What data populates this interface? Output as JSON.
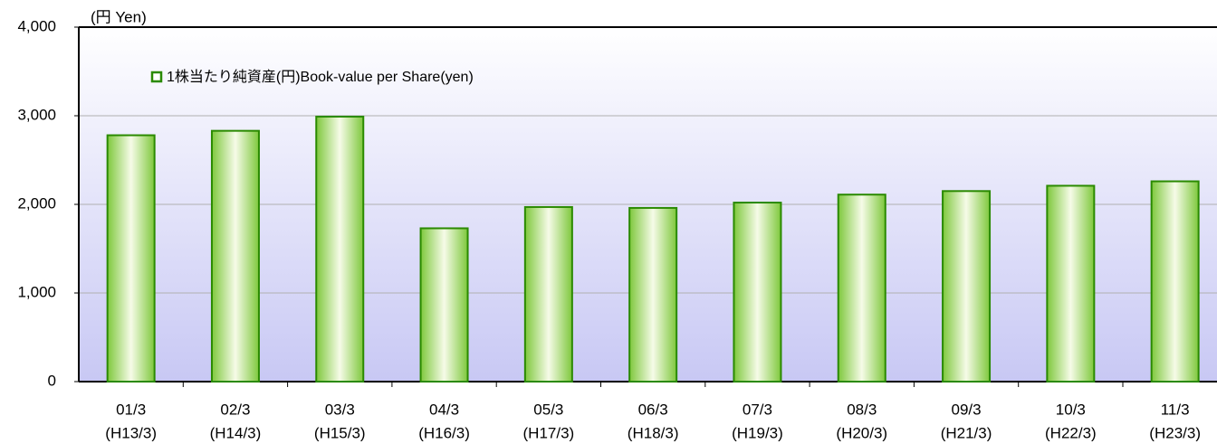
{
  "chart_data": {
    "type": "bar",
    "unit_label": "(円 Yen)",
    "series": [
      {
        "name": "1株当たり純資産(円)Book-value per Share(yen)",
        "color": "#2a8a00",
        "values": [
          2780,
          2830,
          2990,
          1730,
          1970,
          1960,
          2020,
          2110,
          2150,
          2210,
          2260
        ]
      }
    ],
    "categories": [
      [
        "01/3",
        "(H13/3)"
      ],
      [
        "02/3",
        "(H14/3)"
      ],
      [
        "03/3",
        "(H15/3)"
      ],
      [
        "04/3",
        "(H16/3)"
      ],
      [
        "05/3",
        "(H17/3)"
      ],
      [
        "06/3",
        "(H18/3)"
      ],
      [
        "07/3",
        "(H19/3)"
      ],
      [
        "08/3",
        "(H20/3)"
      ],
      [
        "09/3",
        "(H21/3)"
      ],
      [
        "10/3",
        "(H22/3)"
      ],
      [
        "11/3",
        "(H23/3)"
      ]
    ],
    "ylim": [
      0,
      4000
    ],
    "yticks": [
      0,
      {
        "value": 1000,
        "label": "1,000"
      },
      {
        "value": 2000,
        "label": "2,000"
      },
      {
        "value": 3000,
        "label": "3,000"
      },
      {
        "value": 4000,
        "label": "4,000"
      }
    ],
    "grid": true,
    "legend": "top-left"
  }
}
